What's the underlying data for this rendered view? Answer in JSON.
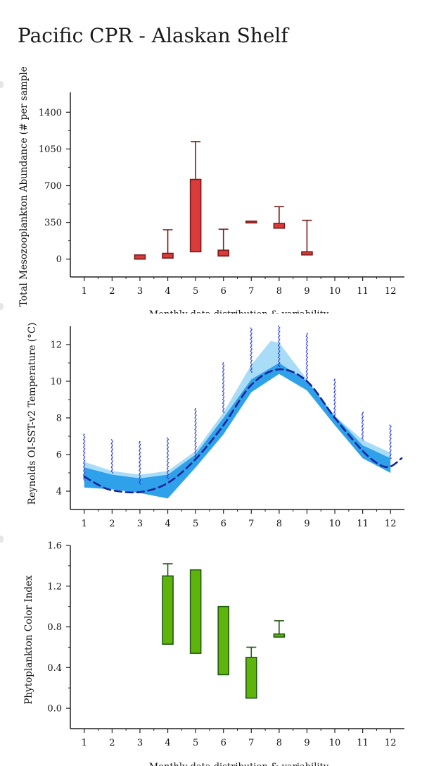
{
  "page": {
    "title": "Pacific CPR - Alaskan Shelf"
  },
  "chart_data": [
    {
      "id": "mesozooplankton",
      "type": "box",
      "ylabel": "Total Mesozooplankton Abundance (# per sample)",
      "xlabel": "Monthly data distribution & variability",
      "xlim": [
        0.5,
        12.5
      ],
      "ylim": [
        -170,
        1590
      ],
      "xticks": [
        1,
        2,
        3,
        4,
        5,
        6,
        7,
        8,
        9,
        10,
        11,
        12
      ],
      "yticks": [
        0,
        350,
        700,
        1050,
        1400
      ],
      "ytick_labels": [
        "0",
        "350",
        "700",
        "1050",
        "1400"
      ],
      "colors": {
        "fill": "#d93a3a",
        "stroke": "#7a1a1a"
      },
      "boxes": [
        {
          "x": 3,
          "q1": 0,
          "q3": 40,
          "max": null
        },
        {
          "x": 4,
          "q1": 10,
          "q3": 55,
          "max": 280
        },
        {
          "x": 5,
          "q1": 70,
          "q3": 760,
          "max": 1120
        },
        {
          "x": 6,
          "q1": 30,
          "q3": 85,
          "max": 285
        },
        {
          "x": 7,
          "q1": 350,
          "q3": 362,
          "max": null
        },
        {
          "x": 8,
          "q1": 295,
          "q3": 340,
          "max": 500
        },
        {
          "x": 9,
          "q1": 40,
          "q3": 70,
          "max": 370
        }
      ]
    },
    {
      "id": "temperature",
      "type": "area-band",
      "ylabel": "Reynolds OI-SST-v2 Temperature (°C)",
      "xlabel": "",
      "xlim": [
        0.5,
        12.5
      ],
      "ylim": [
        3.0,
        13.0
      ],
      "xticks": [
        1,
        2,
        3,
        4,
        5,
        6,
        7,
        8,
        9,
        10,
        11,
        12
      ],
      "yticks": [
        4,
        6,
        8,
        10,
        12
      ],
      "ytick_labels": [
        "4",
        "6",
        "8",
        "10",
        "12"
      ],
      "colors": {
        "outer": "#a9ddf7",
        "inner": "#2fa0ea",
        "mean": "#16249a",
        "points": "#2a3bd6"
      },
      "outer_band": {
        "x": [
          1,
          2,
          3,
          4,
          5,
          6,
          7,
          7.7,
          8,
          9,
          10,
          11,
          12
        ],
        "upper": [
          5.6,
          5.1,
          4.9,
          5.1,
          6.2,
          8.3,
          10.9,
          12.2,
          12.1,
          10.1,
          8.1,
          6.8,
          6.1
        ],
        "lower": [
          4.2,
          4.1,
          3.9,
          3.7,
          5.3,
          7.1,
          9.4,
          10.4,
          10.4,
          9.5,
          7.6,
          5.8,
          5.0
        ]
      },
      "inner_band": {
        "x": [
          1,
          2,
          3,
          4,
          5,
          6,
          7,
          8,
          9,
          10,
          11,
          12
        ],
        "upper": [
          5.3,
          4.9,
          4.7,
          4.9,
          6.0,
          8.0,
          10.1,
          11.0,
          10.0,
          8.1,
          6.5,
          5.8
        ],
        "lower": [
          4.2,
          4.1,
          3.9,
          3.6,
          5.3,
          7.1,
          9.4,
          10.4,
          9.5,
          7.6,
          5.8,
          5.0
        ]
      },
      "mean_curve": {
        "x": [
          1,
          1.5,
          2,
          3,
          4,
          5,
          6,
          7,
          8,
          9,
          10,
          11,
          11.6,
          12,
          12.4
        ],
        "y": [
          4.8,
          4.35,
          4.05,
          3.95,
          4.45,
          5.75,
          7.6,
          9.8,
          10.65,
          10.0,
          8.0,
          6.2,
          5.45,
          5.35,
          5.8
        ]
      },
      "obs": [
        {
          "x": 1,
          "lo": 4.6,
          "hi": 7.1
        },
        {
          "x": 2,
          "lo": 5.0,
          "hi": 6.8
        },
        {
          "x": 3,
          "lo": 4.4,
          "hi": 6.7
        },
        {
          "x": 4,
          "lo": 4.7,
          "hi": 6.9
        },
        {
          "x": 5,
          "lo": 5.8,
          "hi": 8.5
        },
        {
          "x": 6,
          "lo": 8.3,
          "hi": 11.0
        },
        {
          "x": 7,
          "lo": 10.5,
          "hi": 12.9
        },
        {
          "x": 8,
          "lo": 10.8,
          "hi": 13.0
        },
        {
          "x": 9,
          "lo": 10.0,
          "hi": 12.6
        },
        {
          "x": 10,
          "lo": 8.0,
          "hi": 10.1
        },
        {
          "x": 11,
          "lo": 6.8,
          "hi": 8.3
        },
        {
          "x": 12,
          "lo": 5.8,
          "hi": 7.6
        }
      ]
    },
    {
      "id": "phytoplankton",
      "type": "box",
      "ylabel": "Phytoplankton Color Index",
      "xlabel": "Monthly data distribution & variability",
      "xlim": [
        0.5,
        12.5
      ],
      "ylim": [
        -0.2,
        1.6
      ],
      "xticks": [
        1,
        2,
        3,
        4,
        5,
        6,
        7,
        8,
        9,
        10,
        11,
        12
      ],
      "yticks": [
        0.0,
        0.4,
        0.8,
        1.2,
        1.6
      ],
      "ytick_labels": [
        "0.0",
        "0.4",
        "0.8",
        "1.2",
        "1.6"
      ],
      "colors": {
        "fill": "#5fb40c",
        "stroke": "#1f5a12"
      },
      "boxes": [
        {
          "x": 4,
          "q1": 0.63,
          "q3": 1.3,
          "max": 1.42
        },
        {
          "x": 5,
          "q1": 0.54,
          "q3": 1.36,
          "max": null
        },
        {
          "x": 6,
          "q1": 0.33,
          "q3": 1.0,
          "max": null
        },
        {
          "x": 7,
          "q1": 0.1,
          "q3": 0.5,
          "max": 0.6
        },
        {
          "x": 8,
          "q1": 0.7,
          "q3": 0.73,
          "max": 0.86
        }
      ]
    }
  ]
}
